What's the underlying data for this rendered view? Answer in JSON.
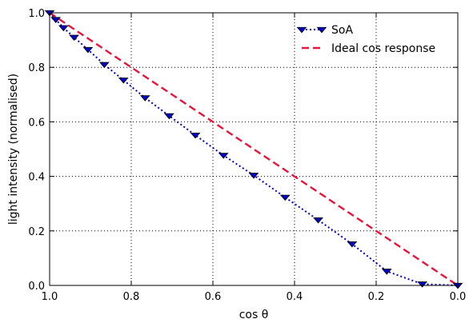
{
  "chart_data": {
    "type": "line",
    "title": "",
    "xlabel": "cos θ",
    "ylabel": "light intensity (normalised)",
    "xlim": [
      1.0,
      0.0
    ],
    "ylim": [
      0.0,
      1.0
    ],
    "x_reversed": true,
    "grid": true,
    "legend_position": "top-right",
    "xticks": [
      1.0,
      0.8,
      0.6,
      0.4,
      0.2,
      0.0
    ],
    "xtick_labels": [
      "1.0",
      "0.8",
      "0.6",
      "0.4",
      "0.2",
      "0.0"
    ],
    "yticks": [
      0.0,
      0.2,
      0.4,
      0.6,
      0.8,
      1.0
    ],
    "ytick_labels": [
      "0.0",
      "0.2",
      "0.4",
      "0.6",
      "0.8",
      "1.0"
    ],
    "series": [
      {
        "name": "SoA",
        "style": "dotted-line-with-triangle-down-markers",
        "color": "#0000cc",
        "marker_fill": "#0000cc",
        "marker_edge": "#000000",
        "x": [
          1.0,
          0.985,
          0.966,
          0.94,
          0.906,
          0.866,
          0.819,
          0.766,
          0.707,
          0.643,
          0.574,
          0.5,
          0.423,
          0.342,
          0.259,
          0.174,
          0.087,
          0.0
        ],
        "y": [
          1.0,
          0.975,
          0.945,
          0.91,
          0.865,
          0.81,
          0.753,
          0.688,
          0.622,
          0.551,
          0.477,
          0.404,
          0.323,
          0.24,
          0.152,
          0.052,
          0.005,
          0.0
        ]
      },
      {
        "name": "Ideal cos response",
        "style": "dashed-line",
        "color": "#e8143c",
        "x": [
          1.0,
          0.0
        ],
        "y": [
          1.0,
          0.0
        ]
      }
    ]
  }
}
